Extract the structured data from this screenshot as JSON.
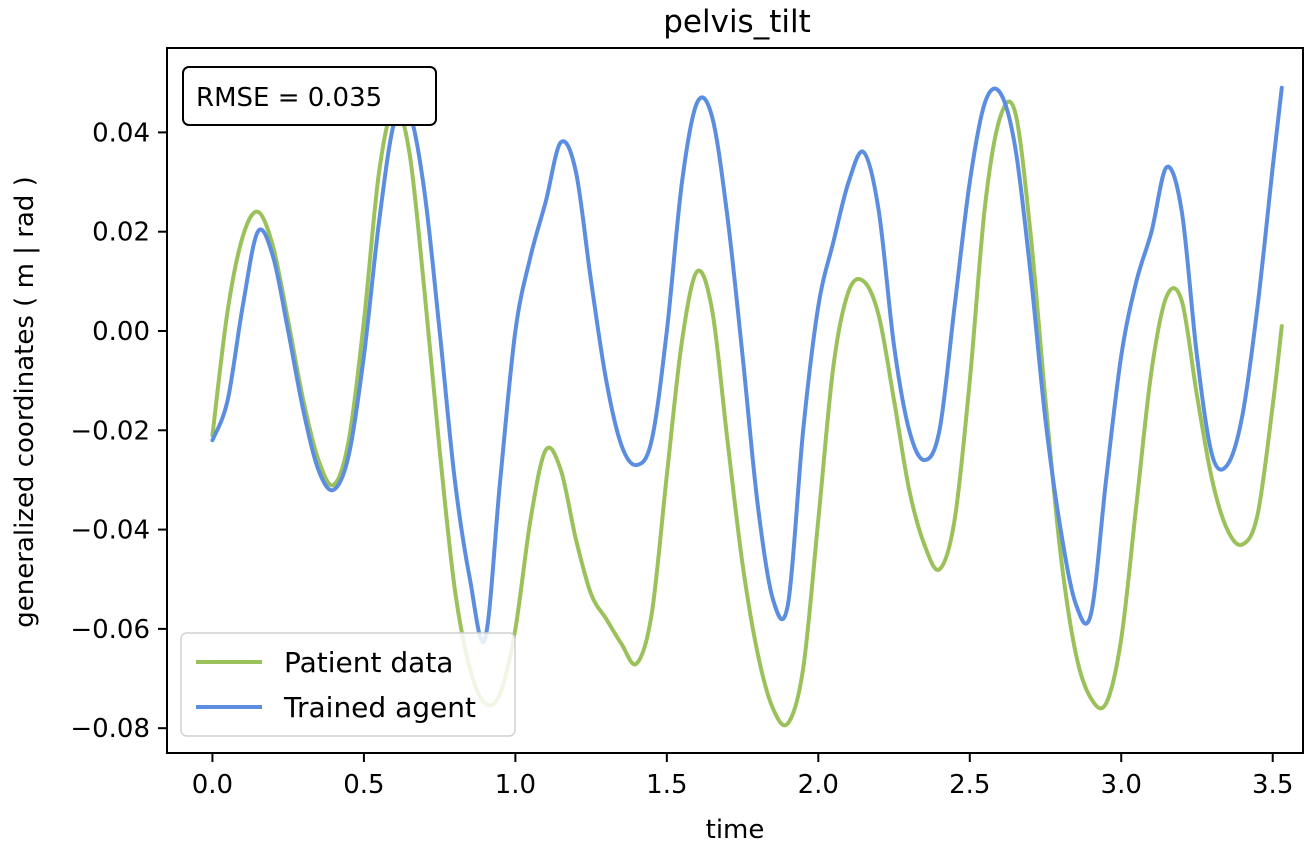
{
  "chart_data": {
    "type": "line",
    "title": "pelvis_tilt",
    "xlabel": "time",
    "ylabel": "generalized coordinates ( m | rad )",
    "xlim": [
      -0.15,
      3.6
    ],
    "ylim": [
      -0.085,
      0.057
    ],
    "xticks": [
      0.0,
      0.5,
      1.0,
      1.5,
      2.0,
      2.5,
      3.0,
      3.5
    ],
    "xtick_labels": [
      "0.0",
      "0.5",
      "1.0",
      "1.5",
      "2.0",
      "2.5",
      "3.0",
      "3.5"
    ],
    "yticks": [
      0.04,
      0.02,
      0.0,
      -0.02,
      -0.04,
      -0.06,
      -0.08
    ],
    "ytick_labels": [
      "0.04",
      "0.02",
      "0.00",
      "−0.02",
      "−0.04",
      "−0.06",
      "−0.08"
    ],
    "grid": false,
    "legend_position": "lower-left",
    "annotation": "RMSE = 0.035",
    "series": [
      {
        "name": "Patient data",
        "color": "#9bc25a",
        "x": [
          0.0,
          0.05,
          0.1,
          0.15,
          0.2,
          0.25,
          0.3,
          0.35,
          0.4,
          0.45,
          0.5,
          0.55,
          0.6,
          0.65,
          0.7,
          0.75,
          0.8,
          0.85,
          0.9,
          0.95,
          1.0,
          1.05,
          1.1,
          1.15,
          1.2,
          1.25,
          1.3,
          1.35,
          1.4,
          1.45,
          1.5,
          1.55,
          1.6,
          1.65,
          1.7,
          1.75,
          1.8,
          1.85,
          1.9,
          1.95,
          2.0,
          2.05,
          2.1,
          2.15,
          2.2,
          2.25,
          2.3,
          2.35,
          2.4,
          2.45,
          2.5,
          2.55,
          2.6,
          2.65,
          2.7,
          2.75,
          2.8,
          2.85,
          2.9,
          2.95,
          3.0,
          3.05,
          3.1,
          3.15,
          3.2,
          3.25,
          3.3,
          3.35,
          3.4,
          3.45,
          3.5,
          3.53
        ],
        "y": [
          -0.021,
          0.004,
          0.019,
          0.024,
          0.017,
          0.002,
          -0.014,
          -0.026,
          -0.031,
          -0.022,
          0.002,
          0.032,
          0.045,
          0.036,
          0.008,
          -0.024,
          -0.052,
          -0.068,
          -0.075,
          -0.073,
          -0.06,
          -0.038,
          -0.024,
          -0.028,
          -0.042,
          -0.053,
          -0.058,
          -0.063,
          -0.067,
          -0.057,
          -0.029,
          -0.002,
          0.012,
          0.004,
          -0.022,
          -0.047,
          -0.065,
          -0.076,
          -0.079,
          -0.068,
          -0.038,
          -0.007,
          0.008,
          0.01,
          0.003,
          -0.014,
          -0.032,
          -0.043,
          -0.048,
          -0.038,
          -0.01,
          0.025,
          0.043,
          0.044,
          0.02,
          -0.014,
          -0.045,
          -0.065,
          -0.074,
          -0.075,
          -0.062,
          -0.035,
          -0.008,
          0.007,
          0.006,
          -0.013,
          -0.03,
          -0.04,
          -0.043,
          -0.037,
          -0.015,
          0.001
        ]
      },
      {
        "name": "Trained agent",
        "color": "#5b8ee0",
        "x": [
          0.0,
          0.05,
          0.1,
          0.15,
          0.2,
          0.25,
          0.3,
          0.35,
          0.4,
          0.45,
          0.5,
          0.55,
          0.6,
          0.65,
          0.7,
          0.75,
          0.8,
          0.85,
          0.9,
          0.95,
          1.0,
          1.05,
          1.1,
          1.15,
          1.2,
          1.25,
          1.3,
          1.35,
          1.4,
          1.45,
          1.5,
          1.55,
          1.6,
          1.65,
          1.7,
          1.75,
          1.8,
          1.85,
          1.9,
          1.95,
          2.0,
          2.05,
          2.1,
          2.15,
          2.2,
          2.25,
          2.3,
          2.35,
          2.4,
          2.45,
          2.5,
          2.55,
          2.6,
          2.65,
          2.7,
          2.75,
          2.8,
          2.85,
          2.9,
          2.95,
          3.0,
          3.05,
          3.1,
          3.15,
          3.2,
          3.25,
          3.3,
          3.35,
          3.4,
          3.45,
          3.5,
          3.53
        ],
        "y": [
          -0.022,
          -0.014,
          0.005,
          0.02,
          0.015,
          0.0,
          -0.016,
          -0.028,
          -0.032,
          -0.025,
          -0.005,
          0.022,
          0.042,
          0.044,
          0.028,
          0.0,
          -0.03,
          -0.05,
          -0.062,
          -0.03,
          0.0,
          0.015,
          0.026,
          0.038,
          0.032,
          0.01,
          -0.01,
          -0.023,
          -0.027,
          -0.022,
          0.0,
          0.03,
          0.046,
          0.043,
          0.023,
          -0.005,
          -0.035,
          -0.054,
          -0.055,
          -0.02,
          0.005,
          0.018,
          0.03,
          0.036,
          0.024,
          -0.003,
          -0.02,
          -0.026,
          -0.02,
          0.005,
          0.03,
          0.046,
          0.048,
          0.037,
          0.012,
          -0.018,
          -0.04,
          -0.055,
          -0.057,
          -0.03,
          -0.005,
          0.01,
          0.02,
          0.033,
          0.024,
          -0.005,
          -0.025,
          -0.027,
          -0.017,
          0.005,
          0.033,
          0.049
        ]
      }
    ]
  }
}
